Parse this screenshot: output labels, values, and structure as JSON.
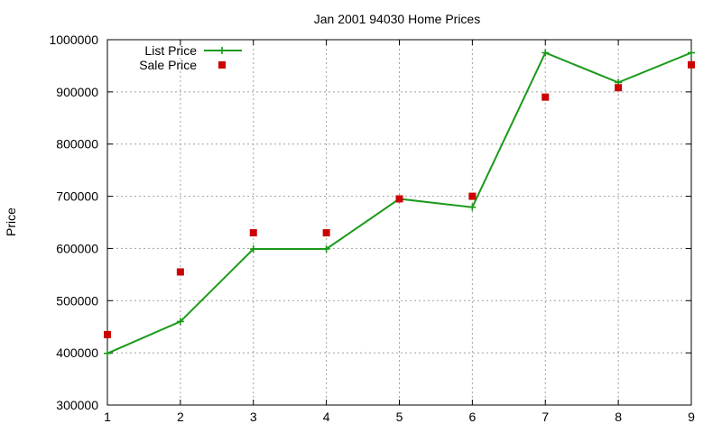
{
  "chart_data": {
    "type": "line",
    "title": "Jan 2001 94030 Home Prices",
    "xlabel": "",
    "ylabel": "Price",
    "xlim": [
      1,
      9
    ],
    "ylim": [
      300000,
      1000000
    ],
    "x_ticks": [
      1,
      2,
      3,
      4,
      5,
      6,
      7,
      8,
      9
    ],
    "y_ticks": [
      300000,
      400000,
      500000,
      600000,
      700000,
      800000,
      900000,
      1000000
    ],
    "grid": true,
    "legend_position": "top-left",
    "series": [
      {
        "name": "List Price",
        "style": "linespoints",
        "marker": "plus",
        "color": "#1a9a1a",
        "x": [
          1,
          2,
          3,
          4,
          5,
          6,
          7,
          8,
          9
        ],
        "y": [
          399000,
          460000,
          599000,
          599000,
          695000,
          679000,
          975000,
          918000,
          975000
        ]
      },
      {
        "name": "Sale Price",
        "style": "points",
        "marker": "square",
        "color": "#cc0000",
        "x": [
          1,
          2,
          3,
          4,
          5,
          6,
          7,
          8,
          9
        ],
        "y": [
          435000,
          555000,
          630000,
          630000,
          695000,
          700000,
          890000,
          908000,
          952000
        ]
      }
    ]
  }
}
